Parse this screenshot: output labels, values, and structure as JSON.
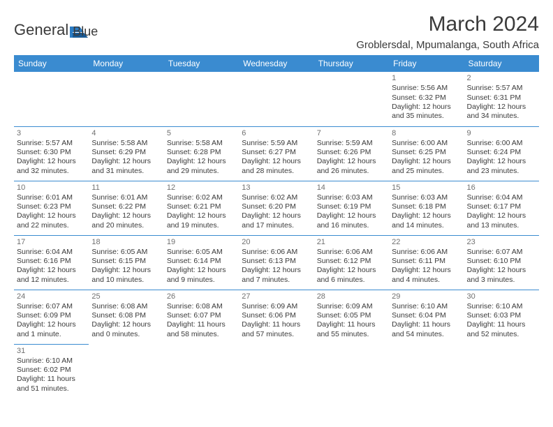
{
  "brand": {
    "name1": "General",
    "name2": "Blue",
    "color_primary": "#2b7cc4",
    "color_text": "#3a3a3a"
  },
  "title": "March 2024",
  "location": "Groblersdal, Mpumalanga, South Africa",
  "header_bg": "#3a8bd0",
  "header_fg": "#ffffff",
  "border_color": "#3a8bd0",
  "days_of_week": [
    "Sunday",
    "Monday",
    "Tuesday",
    "Wednesday",
    "Thursday",
    "Friday",
    "Saturday"
  ],
  "weeks": [
    [
      null,
      null,
      null,
      null,
      null,
      {
        "n": "1",
        "sunrise": "Sunrise: 5:56 AM",
        "sunset": "Sunset: 6:32 PM",
        "daylight": "Daylight: 12 hours and 35 minutes."
      },
      {
        "n": "2",
        "sunrise": "Sunrise: 5:57 AM",
        "sunset": "Sunset: 6:31 PM",
        "daylight": "Daylight: 12 hours and 34 minutes."
      }
    ],
    [
      {
        "n": "3",
        "sunrise": "Sunrise: 5:57 AM",
        "sunset": "Sunset: 6:30 PM",
        "daylight": "Daylight: 12 hours and 32 minutes."
      },
      {
        "n": "4",
        "sunrise": "Sunrise: 5:58 AM",
        "sunset": "Sunset: 6:29 PM",
        "daylight": "Daylight: 12 hours and 31 minutes."
      },
      {
        "n": "5",
        "sunrise": "Sunrise: 5:58 AM",
        "sunset": "Sunset: 6:28 PM",
        "daylight": "Daylight: 12 hours and 29 minutes."
      },
      {
        "n": "6",
        "sunrise": "Sunrise: 5:59 AM",
        "sunset": "Sunset: 6:27 PM",
        "daylight": "Daylight: 12 hours and 28 minutes."
      },
      {
        "n": "7",
        "sunrise": "Sunrise: 5:59 AM",
        "sunset": "Sunset: 6:26 PM",
        "daylight": "Daylight: 12 hours and 26 minutes."
      },
      {
        "n": "8",
        "sunrise": "Sunrise: 6:00 AM",
        "sunset": "Sunset: 6:25 PM",
        "daylight": "Daylight: 12 hours and 25 minutes."
      },
      {
        "n": "9",
        "sunrise": "Sunrise: 6:00 AM",
        "sunset": "Sunset: 6:24 PM",
        "daylight": "Daylight: 12 hours and 23 minutes."
      }
    ],
    [
      {
        "n": "10",
        "sunrise": "Sunrise: 6:01 AM",
        "sunset": "Sunset: 6:23 PM",
        "daylight": "Daylight: 12 hours and 22 minutes."
      },
      {
        "n": "11",
        "sunrise": "Sunrise: 6:01 AM",
        "sunset": "Sunset: 6:22 PM",
        "daylight": "Daylight: 12 hours and 20 minutes."
      },
      {
        "n": "12",
        "sunrise": "Sunrise: 6:02 AM",
        "sunset": "Sunset: 6:21 PM",
        "daylight": "Daylight: 12 hours and 19 minutes."
      },
      {
        "n": "13",
        "sunrise": "Sunrise: 6:02 AM",
        "sunset": "Sunset: 6:20 PM",
        "daylight": "Daylight: 12 hours and 17 minutes."
      },
      {
        "n": "14",
        "sunrise": "Sunrise: 6:03 AM",
        "sunset": "Sunset: 6:19 PM",
        "daylight": "Daylight: 12 hours and 16 minutes."
      },
      {
        "n": "15",
        "sunrise": "Sunrise: 6:03 AM",
        "sunset": "Sunset: 6:18 PM",
        "daylight": "Daylight: 12 hours and 14 minutes."
      },
      {
        "n": "16",
        "sunrise": "Sunrise: 6:04 AM",
        "sunset": "Sunset: 6:17 PM",
        "daylight": "Daylight: 12 hours and 13 minutes."
      }
    ],
    [
      {
        "n": "17",
        "sunrise": "Sunrise: 6:04 AM",
        "sunset": "Sunset: 6:16 PM",
        "daylight": "Daylight: 12 hours and 12 minutes."
      },
      {
        "n": "18",
        "sunrise": "Sunrise: 6:05 AM",
        "sunset": "Sunset: 6:15 PM",
        "daylight": "Daylight: 12 hours and 10 minutes."
      },
      {
        "n": "19",
        "sunrise": "Sunrise: 6:05 AM",
        "sunset": "Sunset: 6:14 PM",
        "daylight": "Daylight: 12 hours and 9 minutes."
      },
      {
        "n": "20",
        "sunrise": "Sunrise: 6:06 AM",
        "sunset": "Sunset: 6:13 PM",
        "daylight": "Daylight: 12 hours and 7 minutes."
      },
      {
        "n": "21",
        "sunrise": "Sunrise: 6:06 AM",
        "sunset": "Sunset: 6:12 PM",
        "daylight": "Daylight: 12 hours and 6 minutes."
      },
      {
        "n": "22",
        "sunrise": "Sunrise: 6:06 AM",
        "sunset": "Sunset: 6:11 PM",
        "daylight": "Daylight: 12 hours and 4 minutes."
      },
      {
        "n": "23",
        "sunrise": "Sunrise: 6:07 AM",
        "sunset": "Sunset: 6:10 PM",
        "daylight": "Daylight: 12 hours and 3 minutes."
      }
    ],
    [
      {
        "n": "24",
        "sunrise": "Sunrise: 6:07 AM",
        "sunset": "Sunset: 6:09 PM",
        "daylight": "Daylight: 12 hours and 1 minute."
      },
      {
        "n": "25",
        "sunrise": "Sunrise: 6:08 AM",
        "sunset": "Sunset: 6:08 PM",
        "daylight": "Daylight: 12 hours and 0 minutes."
      },
      {
        "n": "26",
        "sunrise": "Sunrise: 6:08 AM",
        "sunset": "Sunset: 6:07 PM",
        "daylight": "Daylight: 11 hours and 58 minutes."
      },
      {
        "n": "27",
        "sunrise": "Sunrise: 6:09 AM",
        "sunset": "Sunset: 6:06 PM",
        "daylight": "Daylight: 11 hours and 57 minutes."
      },
      {
        "n": "28",
        "sunrise": "Sunrise: 6:09 AM",
        "sunset": "Sunset: 6:05 PM",
        "daylight": "Daylight: 11 hours and 55 minutes."
      },
      {
        "n": "29",
        "sunrise": "Sunrise: 6:10 AM",
        "sunset": "Sunset: 6:04 PM",
        "daylight": "Daylight: 11 hours and 54 minutes."
      },
      {
        "n": "30",
        "sunrise": "Sunrise: 6:10 AM",
        "sunset": "Sunset: 6:03 PM",
        "daylight": "Daylight: 11 hours and 52 minutes."
      }
    ],
    [
      {
        "n": "31",
        "sunrise": "Sunrise: 6:10 AM",
        "sunset": "Sunset: 6:02 PM",
        "daylight": "Daylight: 11 hours and 51 minutes."
      },
      null,
      null,
      null,
      null,
      null,
      null
    ]
  ]
}
